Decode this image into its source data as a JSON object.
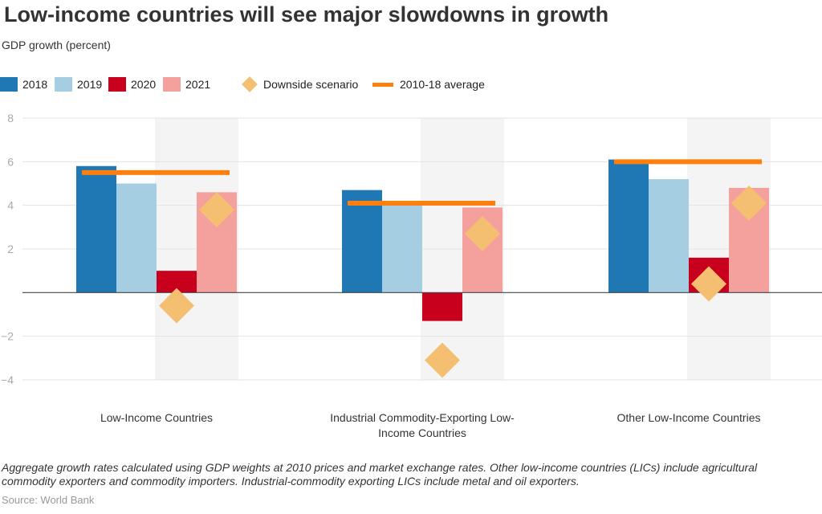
{
  "title": "Low-income countries will see major slowdowns in growth",
  "subtitle": "GDP growth (percent)",
  "legend": {
    "y2018": "2018",
    "y2019": "2019",
    "y2020": "2020",
    "y2021": "2021",
    "downside": "Downside scenario",
    "average": "2010-18 average"
  },
  "colors": {
    "y2018": "#1f77b4",
    "y2019": "#a6cee3",
    "y2020": "#c8001e",
    "y2021": "#f4a09c",
    "downside": "#f5bf72",
    "average": "#ff7f0e",
    "band": "#f4f4f4",
    "grid": "#e3e3e3",
    "axis": "#444444",
    "tick": "#aaaaaa",
    "category_text": "#333333"
  },
  "chart_data": {
    "type": "bar",
    "ylim": [
      -4,
      8
    ],
    "yticks": [
      "8",
      "6",
      "4",
      "2",
      "−2",
      "−4"
    ],
    "ytick_values": [
      8,
      6,
      4,
      2,
      -2,
      -4
    ],
    "categories": [
      [
        "Low-Income Countries"
      ],
      [
        "Industrial Commodity-Exporting Low-",
        "Income Countries"
      ],
      [
        "Other Low-Income Countries"
      ]
    ],
    "series": [
      {
        "name": "2018",
        "values": [
          5.8,
          4.7,
          6.1
        ]
      },
      {
        "name": "2019",
        "values": [
          5.0,
          4.0,
          5.2
        ]
      },
      {
        "name": "2020",
        "values": [
          1.0,
          -1.3,
          1.6
        ]
      },
      {
        "name": "2021",
        "values": [
          4.6,
          3.9,
          4.8
        ]
      }
    ],
    "downside": {
      "name": "Downside scenario",
      "values": [
        -0.6,
        -3.1,
        0.4
      ]
    },
    "average": {
      "name": "2010-18 average",
      "values": [
        5.5,
        4.1,
        6.0
      ]
    },
    "shaded": "2020-2021 columns"
  },
  "note": "Aggregate growth rates calculated using GDP weights at 2010 prices and market exchange rates. Other low-income countries (LICs) include agricultural commodity exporters and commodity importers. Industrial-commodity exporting LICs include metal and oil exporters.",
  "source": "Source: World Bank"
}
